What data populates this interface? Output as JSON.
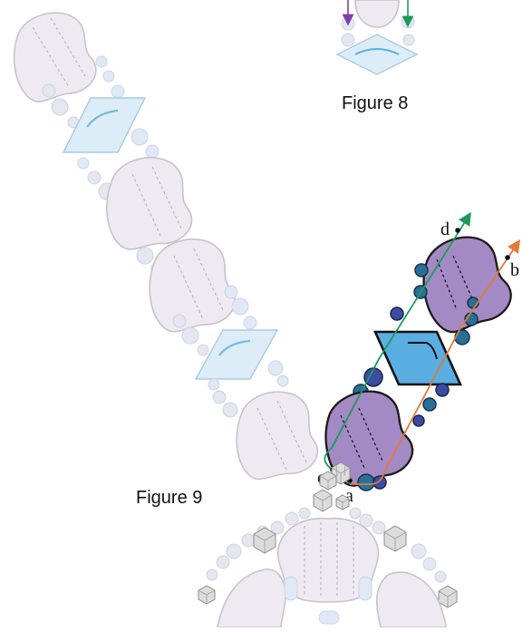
{
  "figure8": {
    "label": "Figure 8"
  },
  "figure9": {
    "label": "Figure 9"
  },
  "points": {
    "a": "a",
    "b": "b",
    "c": "c",
    "d": "d"
  },
  "colors": {
    "lobe_faint": "#efeaf2",
    "lobe_highlight": "#a48ac4",
    "rhombus_faint": "#dcedf8",
    "rhombus_highlight": "#5aaee2",
    "bead_teal": "#27709a",
    "bead_indigo": "#3b4ca2",
    "path_green": "#1a9a5e",
    "path_orange": "#e07b3a",
    "path_purple": "#7b3fa8"
  }
}
